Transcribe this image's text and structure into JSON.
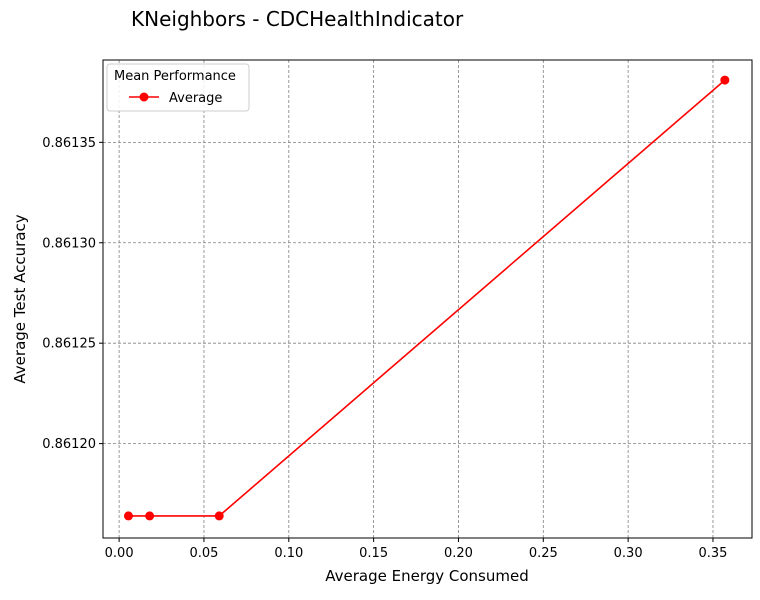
{
  "chart_data": {
    "type": "line",
    "title": "KNeighbors - CDCHealthIndicator",
    "xlabel": "Average Energy Consumed",
    "ylabel": "Average Test Accuracy",
    "xlim": [
      -0.0095,
      0.373
    ],
    "ylim": [
      0.861153,
      0.861391
    ],
    "x_ticks": [
      0.0,
      0.05,
      0.1,
      0.15,
      0.2,
      0.25,
      0.3,
      0.35
    ],
    "x_tick_labels": [
      "0.00",
      "0.05",
      "0.10",
      "0.15",
      "0.20",
      "0.25",
      "0.30",
      "0.35"
    ],
    "y_ticks": [
      0.8612,
      0.86125,
      0.8613,
      0.86135
    ],
    "y_tick_labels": [
      "0.86120",
      "0.86125",
      "0.86130",
      "0.86135"
    ],
    "grid": true,
    "legend": {
      "title": "Mean Performance",
      "placement": "top-left"
    },
    "series": [
      {
        "name": "Average",
        "color": "#ff0000",
        "marker": "circle",
        "x": [
          0.0055,
          0.018,
          0.059,
          0.357
        ],
        "y": [
          0.861164,
          0.861164,
          0.861164,
          0.861381
        ]
      }
    ]
  }
}
